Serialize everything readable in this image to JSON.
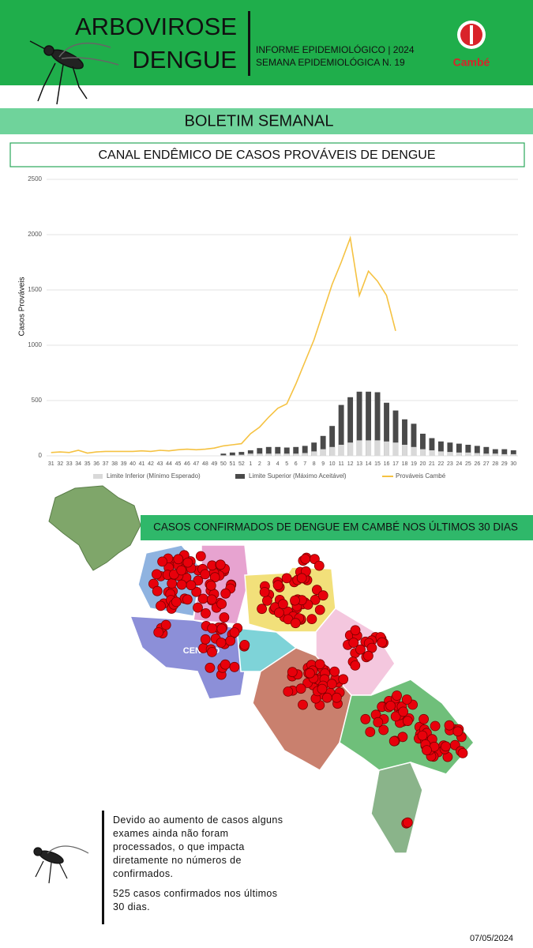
{
  "header": {
    "title_line1": "ARBOVIROSE",
    "title_line2": "DENGUE",
    "info_line1": "INFORME EPIDEMIOLÓGICO | 2024",
    "info_line2": "SEMANA EPIDEMIOLÓGICA  N. 19",
    "logo_text": "Cambé"
  },
  "banner": "BOLETIM SEMANAL",
  "chart_data": {
    "type": "bar",
    "title": "CANAL ENDÊMICO DE CASOS PROVÁVEIS DE DENGUE",
    "y_label": "Casos Prováveis",
    "categories": [
      "31",
      "32",
      "33",
      "34",
      "35",
      "36",
      "37",
      "38",
      "39",
      "40",
      "41",
      "42",
      "43",
      "44",
      "45",
      "46",
      "47",
      "48",
      "49",
      "50",
      "51",
      "52",
      "1",
      "2",
      "3",
      "4",
      "5",
      "6",
      "7",
      "8",
      "9",
      "10",
      "11",
      "12",
      "13",
      "14",
      "15",
      "16",
      "17",
      "18",
      "19",
      "20",
      "21",
      "22",
      "23",
      "24",
      "25",
      "26",
      "27",
      "28",
      "29",
      "30"
    ],
    "ylim": [
      0,
      2500
    ],
    "yticks": [
      0,
      500,
      1000,
      1500,
      2000,
      2500
    ],
    "grid": true,
    "legend": "bottom",
    "series": [
      {
        "name": "Limite Superior (Máximo Aceitável)",
        "type": "bar",
        "color": "#4a4a4a",
        "values": [
          null,
          null,
          null,
          null,
          null,
          null,
          null,
          null,
          null,
          null,
          null,
          null,
          null,
          null,
          null,
          null,
          null,
          null,
          null,
          20,
          30,
          35,
          50,
          70,
          80,
          80,
          75,
          80,
          90,
          120,
          180,
          270,
          460,
          530,
          580,
          580,
          575,
          480,
          410,
          330,
          290,
          200,
          160,
          130,
          120,
          110,
          100,
          90,
          80,
          60,
          60,
          50
        ]
      },
      {
        "name": "Limite Inferior (Mínimo Esperado)",
        "type": "bar",
        "color": "#d9d9d9",
        "values": [
          null,
          null,
          null,
          null,
          null,
          null,
          null,
          null,
          null,
          null,
          null,
          null,
          null,
          null,
          null,
          null,
          null,
          null,
          null,
          5,
          5,
          10,
          20,
          20,
          20,
          20,
          20,
          20,
          25,
          40,
          60,
          80,
          100,
          120,
          140,
          140,
          140,
          130,
          120,
          100,
          80,
          60,
          50,
          40,
          35,
          30,
          30,
          25,
          20,
          20,
          15,
          15
        ]
      },
      {
        "name": "Prováveis Cambé",
        "type": "line",
        "color": "#f5c242",
        "values": [
          30,
          35,
          30,
          50,
          25,
          35,
          40,
          40,
          40,
          40,
          45,
          40,
          50,
          45,
          55,
          60,
          55,
          60,
          70,
          90,
          100,
          110,
          200,
          260,
          350,
          430,
          470,
          650,
          850,
          1050,
          1300,
          1550,
          1750,
          1970,
          1450,
          1670,
          1580,
          1450,
          1130,
          null,
          null,
          null,
          null,
          null,
          null,
          null,
          null,
          null,
          null,
          null,
          null,
          null
        ]
      }
    ],
    "legend_order": [
      1,
      0,
      2
    ]
  },
  "map": {
    "title": "CASOS CONFIRMADOS DE DENGUE EM CAMBÉ NOS ÚLTIMOS 30 DIAS",
    "label_centro": "CENTRO"
  },
  "note": {
    "paragraph1": "Devido ao aumento de casos alguns exames ainda não foram processados, o que impacta diretamente no números de confirmados.",
    "paragraph2": "525 casos confirmados nos últimos 30 dias."
  },
  "date": "07/05/2024"
}
